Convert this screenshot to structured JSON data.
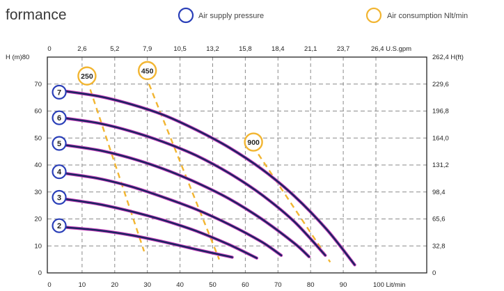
{
  "header": {
    "title": "formance",
    "legend": [
      {
        "label": "Air supply pressure",
        "color": "#2a3fb8"
      },
      {
        "label": "Air consumption Nlt/min",
        "color": "#f2b531"
      }
    ]
  },
  "chart_data": {
    "type": "line",
    "xlabel": "Lit/min",
    "x_top_label": "U.S.gpm",
    "ylabel_left": "H (m)",
    "ylabel_right": "H(ft)",
    "xlim": [
      0,
      110
    ],
    "ylim": [
      0,
      80
    ],
    "x_ticks": [
      0,
      10,
      20,
      30,
      40,
      50,
      60,
      70,
      80,
      90,
      100
    ],
    "x_tick_labels": [
      "0",
      "10",
      "20",
      "30",
      "40",
      "50",
      "60",
      "70",
      "80",
      "90",
      "100"
    ],
    "x_top_ticks": [
      0,
      10,
      20,
      30,
      40,
      50,
      60,
      70,
      80,
      90,
      100
    ],
    "x_top_tick_labels": [
      "0",
      "2,6",
      "5,2",
      "7,9",
      "10,5",
      "13,2",
      "15,8",
      "18,4",
      "21,1",
      "23,7",
      "26,4"
    ],
    "y_ticks": [
      0,
      10,
      20,
      30,
      40,
      50,
      60,
      70,
      80
    ],
    "y_tick_labels": [
      "0",
      "10",
      "20",
      "30",
      "40",
      "50",
      "60",
      "70",
      "80"
    ],
    "y_right_ticks": [
      0,
      10,
      20,
      30,
      40,
      50,
      60,
      70,
      80
    ],
    "y_right_tick_labels": [
      "0",
      "32,8",
      "65,6",
      "98,4",
      "131,2",
      "164,0",
      "196,8",
      "229,6",
      "262,4"
    ],
    "grid": true,
    "series": [
      {
        "name": "2",
        "label_at": [
          3,
          17.5
        ],
        "x": [
          4,
          15,
          25,
          35,
          45,
          56
        ],
        "y": [
          17,
          15.8,
          14,
          11.5,
          8.7,
          5.8
        ]
      },
      {
        "name": "3",
        "label_at": [
          3,
          28
        ],
        "x": [
          4,
          15,
          25,
          35,
          45,
          55,
          63.5
        ],
        "y": [
          27.5,
          25.5,
          22.8,
          19.5,
          15.5,
          10.5,
          5.5
        ]
      },
      {
        "name": "4",
        "label_at": [
          3,
          37.5
        ],
        "x": [
          4,
          15,
          25,
          35,
          45,
          55,
          65,
          71
        ],
        "y": [
          37,
          35,
          32,
          28,
          23.5,
          18,
          11.5,
          6.5
        ]
      },
      {
        "name": "5",
        "label_at": [
          3,
          48
        ],
        "x": [
          4,
          15,
          25,
          35,
          45,
          55,
          65,
          75,
          79.5
        ],
        "y": [
          47.5,
          45.5,
          42.5,
          38.5,
          33.5,
          27.5,
          20,
          11,
          6
        ]
      },
      {
        "name": "6",
        "label_at": [
          3,
          57.5
        ],
        "x": [
          4,
          15,
          25,
          35,
          45,
          55,
          65,
          75,
          84.5
        ],
        "y": [
          57.5,
          55.5,
          52.5,
          48.5,
          43.5,
          37,
          29,
          19,
          6.5
        ]
      },
      {
        "name": "7",
        "label_at": [
          3,
          67
        ],
        "x": [
          4,
          15,
          25,
          35,
          45,
          55,
          65,
          75,
          85,
          93.5
        ],
        "y": [
          67.5,
          65.5,
          62.5,
          58.5,
          53,
          46.5,
          38.5,
          28.5,
          16,
          3
        ]
      }
    ],
    "air_consumption": [
      {
        "name": "250",
        "label_at": [
          11.5,
          73
        ],
        "x": [
          12.5,
          29
        ],
        "y": [
          68,
          8
        ]
      },
      {
        "name": "450",
        "label_at": [
          30,
          75
        ],
        "x": [
          30.5,
          52
        ],
        "y": [
          70,
          5
        ]
      },
      {
        "name": "900",
        "label_at": [
          62.5,
          48.5
        ],
        "x": [
          64,
          86
        ],
        "y": [
          44,
          4
        ]
      }
    ]
  }
}
